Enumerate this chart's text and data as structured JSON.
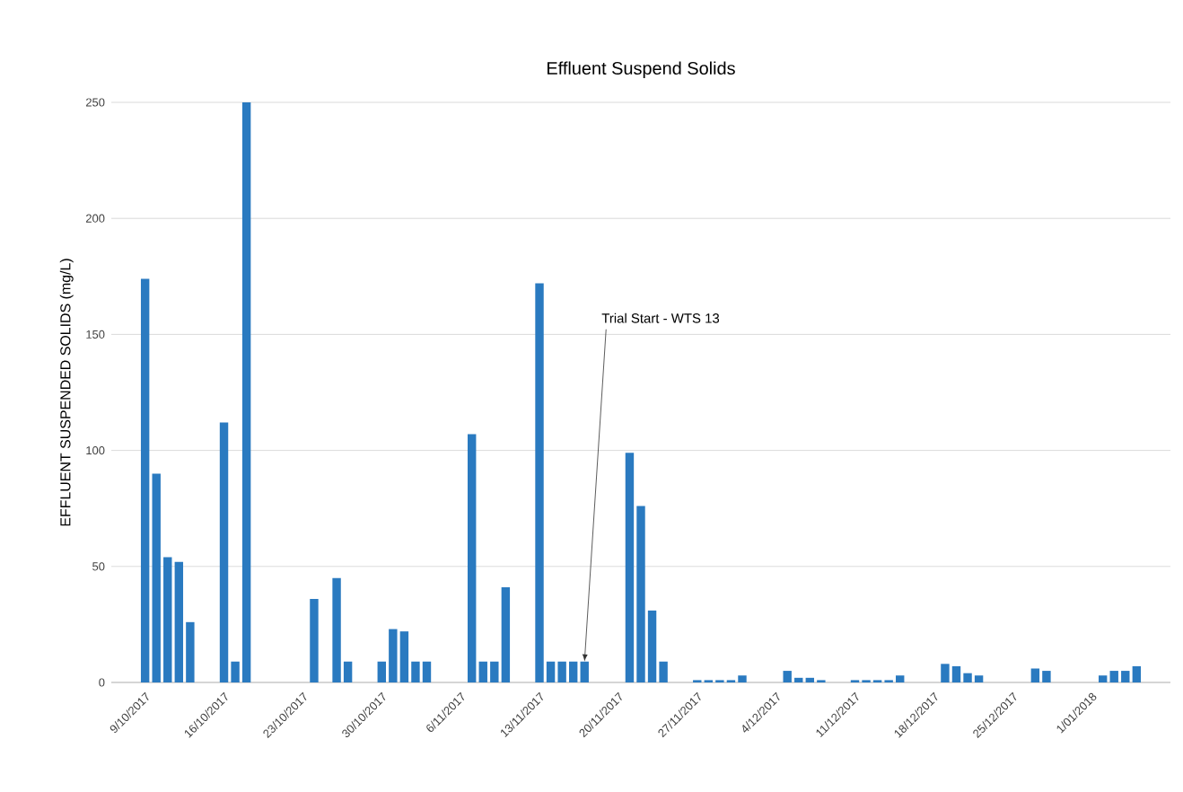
{
  "chart_data": {
    "type": "bar",
    "title": "Effluent Suspend Solids",
    "ylabel": "EFFLUENT SUSPENDED SOLIDS (mg/L)",
    "x": [
      "2017-10-09",
      "2017-10-10",
      "2017-10-11",
      "2017-10-12",
      "2017-10-13",
      "2017-10-16",
      "2017-10-17",
      "2017-10-18",
      "2017-10-24",
      "2017-10-26",
      "2017-10-27",
      "2017-10-30",
      "2017-10-31",
      "2017-11-01",
      "2017-11-02",
      "2017-11-03",
      "2017-11-07",
      "2017-11-08",
      "2017-11-09",
      "2017-11-10",
      "2017-11-13",
      "2017-11-14",
      "2017-11-15",
      "2017-11-16",
      "2017-11-17",
      "2017-11-21",
      "2017-11-22",
      "2017-11-23",
      "2017-11-24",
      "2017-11-27",
      "2017-11-28",
      "2017-11-29",
      "2017-11-30",
      "2017-12-01",
      "2017-12-05",
      "2017-12-06",
      "2017-12-07",
      "2017-12-08",
      "2017-12-11",
      "2017-12-12",
      "2017-12-13",
      "2017-12-14",
      "2017-12-15",
      "2017-12-19",
      "2017-12-20",
      "2017-12-21",
      "2017-12-22",
      "2017-12-27",
      "2017-12-28",
      "2018-01-02",
      "2018-01-03",
      "2018-01-04",
      "2018-01-05"
    ],
    "values": [
      174,
      90,
      54,
      52,
      26,
      112,
      9,
      250,
      36,
      45,
      9,
      9,
      23,
      22,
      9,
      9,
      107,
      9,
      9,
      41,
      172,
      9,
      9,
      9,
      9,
      99,
      76,
      31,
      9,
      1,
      1,
      1,
      1,
      3,
      5,
      2,
      2,
      1,
      1,
      1,
      1,
      1,
      3,
      8,
      7,
      4,
      3,
      6,
      5,
      3,
      5,
      5,
      7
    ],
    "color": "#2a7ac0",
    "xlim": [
      "2017-10-06",
      "2018-01-08"
    ],
    "xticks": [
      {
        "value": "2017-10-09",
        "label": "9/10/2017"
      },
      {
        "value": "2017-10-16",
        "label": "16/10/2017"
      },
      {
        "value": "2017-10-23",
        "label": "23/10/2017"
      },
      {
        "value": "2017-10-30",
        "label": "30/10/2017"
      },
      {
        "value": "2017-11-06",
        "label": "6/11/2017"
      },
      {
        "value": "2017-11-13",
        "label": "13/11/2017"
      },
      {
        "value": "2017-11-20",
        "label": "20/11/2017"
      },
      {
        "value": "2017-11-27",
        "label": "27/11/2017"
      },
      {
        "value": "2017-12-04",
        "label": "4/12/2017"
      },
      {
        "value": "2017-12-11",
        "label": "11/12/2017"
      },
      {
        "value": "2017-12-18",
        "label": "18/12/2017"
      },
      {
        "value": "2017-12-25",
        "label": "25/12/2017"
      },
      {
        "value": "2018-01-01",
        "label": "1/01/2018"
      }
    ],
    "ylim": [
      0,
      250
    ],
    "yticks": [
      0,
      50,
      100,
      150,
      200,
      250
    ],
    "grid": "y",
    "annotations": [
      {
        "text": "Trial Start - WTS 13",
        "x": "2017-11-17",
        "y": 9
      }
    ]
  }
}
